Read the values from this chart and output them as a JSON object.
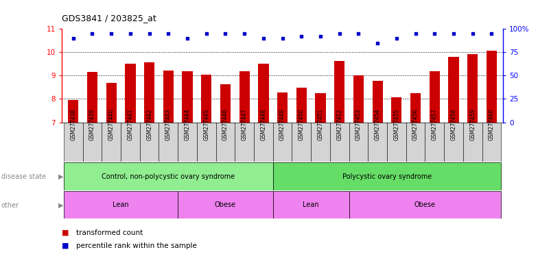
{
  "title": "GDS3841 / 203825_at",
  "samples": [
    "GSM277438",
    "GSM277439",
    "GSM277440",
    "GSM277441",
    "GSM277442",
    "GSM277443",
    "GSM277444",
    "GSM277445",
    "GSM277446",
    "GSM277447",
    "GSM277448",
    "GSM277449",
    "GSM277450",
    "GSM277451",
    "GSM277452",
    "GSM277453",
    "GSM277454",
    "GSM277455",
    "GSM277456",
    "GSM277457",
    "GSM277458",
    "GSM277459",
    "GSM277460"
  ],
  "transformed_count": [
    7.95,
    9.15,
    8.7,
    9.5,
    9.58,
    9.22,
    9.18,
    9.05,
    8.62,
    9.18,
    9.5,
    8.28,
    8.48,
    8.24,
    9.62,
    9.0,
    8.78,
    8.08,
    8.24,
    9.2,
    9.8,
    9.92,
    10.08
  ],
  "percentile_rank": [
    90,
    95,
    95,
    95,
    95,
    95,
    90,
    95,
    95,
    95,
    90,
    90,
    92,
    92,
    95,
    95,
    85,
    90,
    95,
    95,
    95,
    95,
    95
  ],
  "ylim_left": [
    7,
    11
  ],
  "ylim_right": [
    0,
    100
  ],
  "yticks_left": [
    7,
    8,
    9,
    10,
    11
  ],
  "yticks_right": [
    0,
    25,
    50,
    75,
    100
  ],
  "ytick_labels_right": [
    "0",
    "25",
    "50",
    "75",
    "100%"
  ],
  "bar_color": "#cc0000",
  "dot_color": "#0000cc",
  "disease_state_labels": [
    "Control, non-polycystic ovary syndrome",
    "Polycystic ovary syndrome"
  ],
  "disease_state_colors": [
    "#90ee90",
    "#66dd66"
  ],
  "other_labels": [
    "Lean",
    "Obese",
    "Lean",
    "Obese"
  ],
  "other_color": "#ee82ee",
  "disease_state_splits": [
    0,
    11,
    23
  ],
  "other_splits": [
    0,
    6,
    11,
    15,
    23
  ],
  "legend_bar_label": "transformed count",
  "legend_dot_label": "percentile rank within the sample",
  "bg_color": "#ffffff",
  "xtick_bg": "#d4d4d4"
}
